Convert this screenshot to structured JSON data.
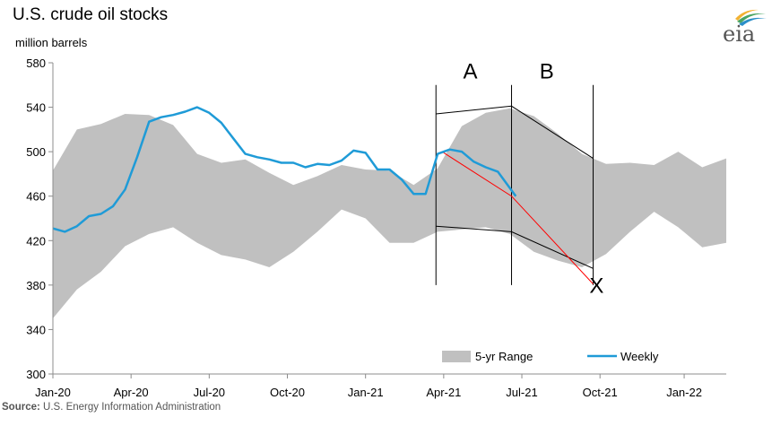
{
  "chart_data": {
    "type": "area",
    "title": "U.S. crude oil stocks",
    "ylabel": "million barrels",
    "ylim": [
      300,
      580
    ],
    "yticks": [
      300,
      340,
      380,
      420,
      460,
      500,
      540,
      580
    ],
    "xlim": [
      "2020-01-03",
      "2022-02-25"
    ],
    "xticks": [
      {
        "date": "2020-01-03",
        "label": "Jan-20"
      },
      {
        "date": "2020-04-03",
        "label": "Apr-20"
      },
      {
        "date": "2020-07-03",
        "label": "Jul-20"
      },
      {
        "date": "2020-10-02",
        "label": "Oct-20"
      },
      {
        "date": "2021-01-01",
        "label": "Jan-21"
      },
      {
        "date": "2021-04-02",
        "label": "Apr-21"
      },
      {
        "date": "2021-07-02",
        "label": "Jul-21"
      },
      {
        "date": "2021-10-01",
        "label": "Oct-21"
      },
      {
        "date": "2022-01-07",
        "label": "Jan-22"
      }
    ],
    "grid": false,
    "legend_position": "bottom-right",
    "series": [
      {
        "name": "5-yr Range",
        "kind": "band",
        "color": "#c0c0c0",
        "x": [
          "2020-01-03",
          "2020-01-31",
          "2020-02-28",
          "2020-03-27",
          "2020-04-24",
          "2020-05-22",
          "2020-06-19",
          "2020-07-17",
          "2020-08-14",
          "2020-09-11",
          "2020-10-09",
          "2020-11-06",
          "2020-12-04",
          "2021-01-01",
          "2021-01-29",
          "2021-02-26",
          "2021-03-26",
          "2021-04-23",
          "2021-05-21",
          "2021-06-18",
          "2021-07-16",
          "2021-08-13",
          "2021-09-10",
          "2021-10-08",
          "2021-11-05",
          "2021-12-03",
          "2021-12-31",
          "2022-01-28",
          "2022-02-25"
        ],
        "low": [
          350,
          376,
          392,
          415,
          426,
          432,
          418,
          407,
          403,
          396,
          410,
          428,
          448,
          440,
          418,
          418,
          428,
          430,
          432,
          426,
          410,
          402,
          396,
          408,
          428,
          446,
          432,
          414,
          418
        ],
        "high": [
          483,
          520,
          525,
          534,
          533,
          524,
          498,
          490,
          493,
          481,
          470,
          478,
          488,
          484,
          483,
          470,
          485,
          523,
          535,
          539,
          532,
          516,
          498,
          489,
          490,
          488,
          500,
          486,
          494
        ]
      },
      {
        "name": "Weekly",
        "kind": "line",
        "color": "#1f9bd7",
        "x": [
          "2020-01-03",
          "2020-01-17",
          "2020-01-31",
          "2020-02-14",
          "2020-02-28",
          "2020-03-13",
          "2020-03-27",
          "2020-04-10",
          "2020-04-24",
          "2020-05-08",
          "2020-05-22",
          "2020-06-05",
          "2020-06-19",
          "2020-07-03",
          "2020-07-17",
          "2020-07-31",
          "2020-08-14",
          "2020-08-28",
          "2020-09-11",
          "2020-09-25",
          "2020-10-09",
          "2020-10-23",
          "2020-11-06",
          "2020-11-20",
          "2020-12-04",
          "2020-12-18",
          "2021-01-01",
          "2021-01-15",
          "2021-01-29",
          "2021-02-12",
          "2021-02-26",
          "2021-03-12",
          "2021-03-26",
          "2021-04-09",
          "2021-04-23",
          "2021-05-07",
          "2021-05-21",
          "2021-06-04",
          "2021-06-25"
        ],
        "y": [
          431,
          428,
          433,
          442,
          444,
          451,
          466,
          495,
          527,
          531,
          533,
          536,
          540,
          535,
          526,
          512,
          498,
          495,
          493,
          490,
          490,
          486,
          489,
          488,
          492,
          501,
          499,
          484,
          484,
          475,
          462,
          462,
          498,
          502,
          500,
          491,
          486,
          482,
          460
        ]
      }
    ],
    "annotations": [
      {
        "label": "A",
        "x": "2021-05-03",
        "y": 566
      },
      {
        "label": "B",
        "x": "2021-07-31",
        "y": 566
      },
      {
        "label": "X",
        "x": "2021-09-27",
        "y": 373
      }
    ],
    "vertical_lines": [
      {
        "x": "2021-03-24",
        "y_range": [
          380,
          560
        ]
      },
      {
        "x": "2021-06-20",
        "y_range": [
          380,
          560
        ]
      },
      {
        "x": "2021-09-23",
        "y_range": [
          380,
          560
        ]
      }
    ],
    "projection_lines": [
      {
        "color": "#000000",
        "x": [
          "2021-03-24",
          "2021-06-20",
          "2021-09-23"
        ],
        "y": [
          534,
          541,
          494
        ]
      },
      {
        "color": "#000000",
        "x": [
          "2021-03-24",
          "2021-06-20",
          "2021-09-23"
        ],
        "y": [
          433,
          428,
          395
        ]
      },
      {
        "color": "#ff0000",
        "x": [
          "2021-03-31",
          "2021-06-20",
          "2021-09-23"
        ],
        "y": [
          500,
          460,
          381
        ]
      }
    ],
    "source_label": "Source:",
    "source_text": " U.S. Energy Information Administration",
    "logo_text": "eia"
  }
}
